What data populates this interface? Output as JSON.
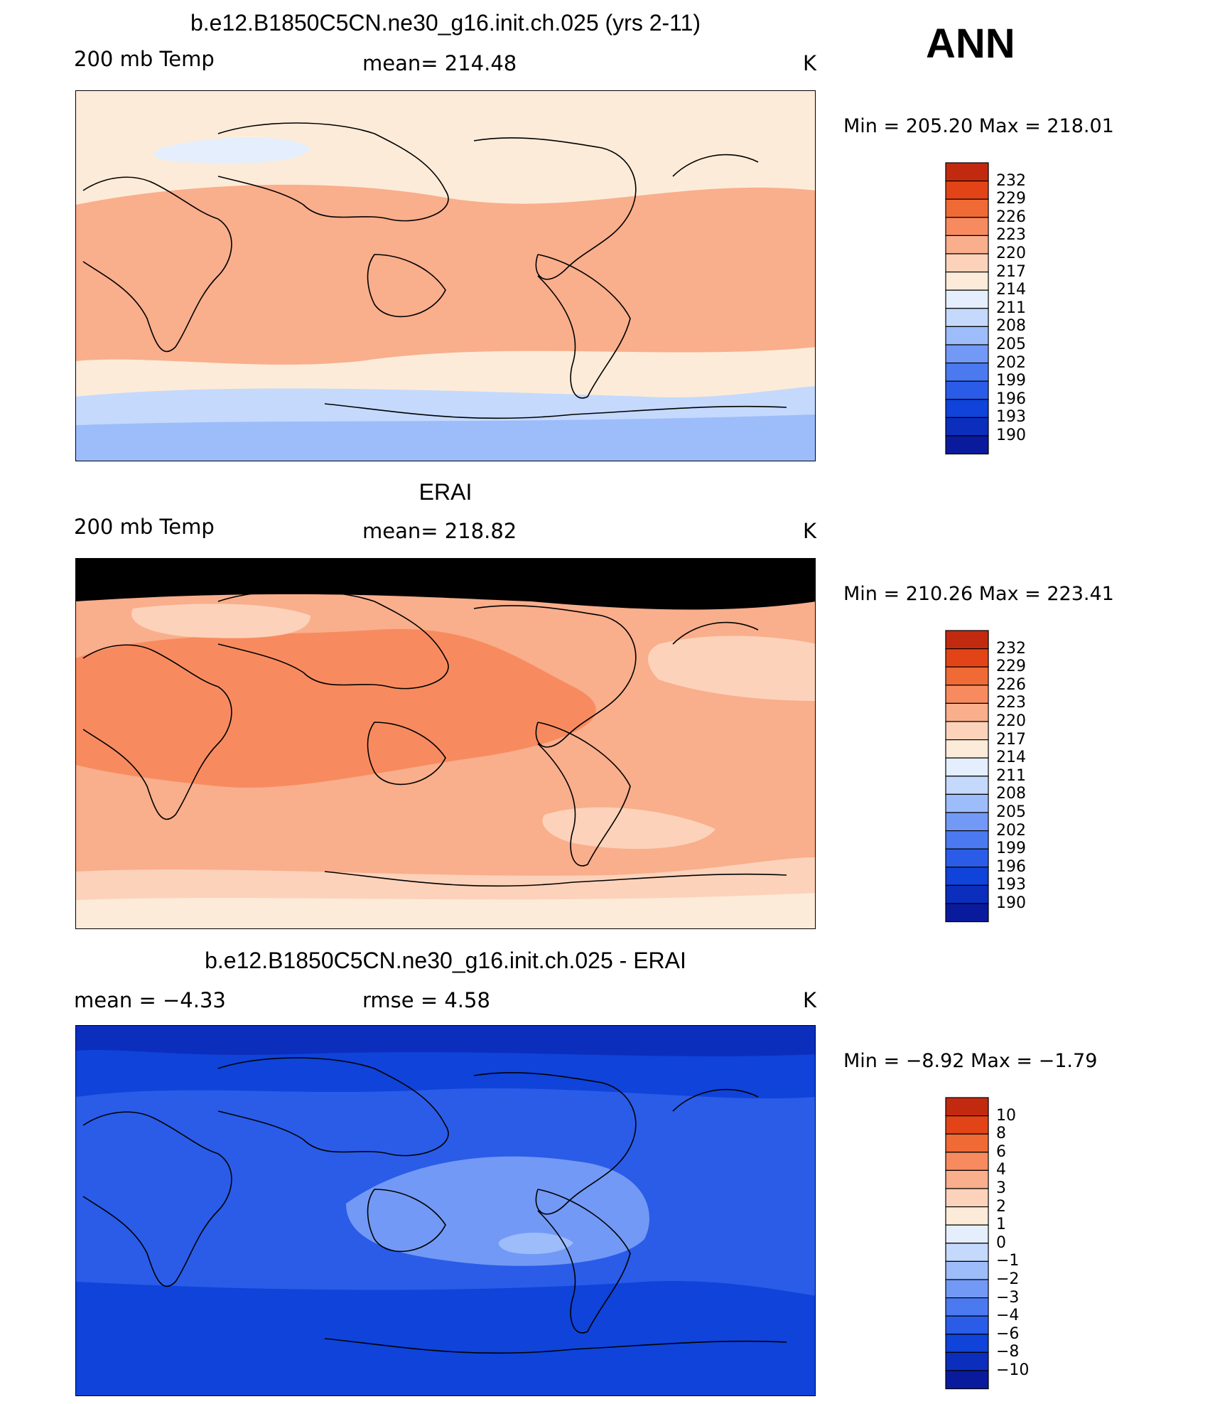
{
  "season": "ANN",
  "palette": [
    "#0a1a9c",
    "#0c2ebd",
    "#0f43d9",
    "#2a5ce8",
    "#4b7af0",
    "#7299f5",
    "#9dbcfa",
    "#c4d9fc",
    "#e4eefc",
    "#fdebd9",
    "#fcd2ba",
    "#f9ae8c",
    "#f78b5f",
    "#f06a36",
    "#e34417",
    "#c22a10",
    "#8e0c0a"
  ],
  "panels": [
    {
      "title": "b.e12.B1850C5CN.ne30_g16.init.ch.025 (yrs 2-11)",
      "left_label": "200 mb Temp",
      "center_label": "mean=  214.48",
      "right_label": "K",
      "min_max": "Min  =  205.20  Max  =  218.01",
      "colorbar": {
        "levels": [
          "232",
          "229",
          "226",
          "223",
          "220",
          "217",
          "214",
          "211",
          "208",
          "205",
          "202",
          "199",
          "196",
          "193",
          "190"
        ]
      },
      "map_fields": {
        "base": "#fdebd9",
        "bands": [
          "#c4d9fc",
          "#9dbcfa"
        ],
        "tropics": "#f9ae8c",
        "highlight": "#e4eefc"
      }
    },
    {
      "title": "ERAI",
      "left_label": "200 mb Temp",
      "center_label": "mean=  218.82",
      "right_label": "K",
      "min_max": "Min  =  210.26  Max  =  223.41",
      "colorbar": {
        "levels": [
          "232",
          "229",
          "226",
          "223",
          "220",
          "217",
          "214",
          "211",
          "208",
          "205",
          "202",
          "199",
          "196",
          "193",
          "190"
        ]
      },
      "map_fields": {
        "base": "#f9ae8c",
        "bands": [
          "#fcd2ba",
          "#fdebd9"
        ],
        "tropics": "#f78b5f",
        "highlight": "#fcd2ba"
      }
    },
    {
      "title": "b.e12.B1850C5CN.ne30_g16.init.ch.025 - ERAI",
      "left_label": "mean  =    −4.33",
      "center_label": "rmse  =     4.58",
      "right_label": "K",
      "min_max": "Min  =    −8.92  Max  =    −1.79",
      "colorbar": {
        "levels": [
          "10",
          "8",
          "6",
          "4",
          "3",
          "2",
          "1",
          "0",
          "−1",
          "−2",
          "−3",
          "−4",
          "−6",
          "−8",
          "−10"
        ]
      },
      "map_fields": {
        "base": "#2a5ce8",
        "bands": [
          "#0f43d9",
          "#0c2ebd"
        ],
        "tropics": "#7299f5",
        "highlight": "#9dbcfa"
      }
    }
  ],
  "chart_data": [
    {
      "type": "heatmap",
      "title": "b.e12.B1850C5CN.ne30_g16.init.ch.025 (yrs 2-11)",
      "variable": "200 mb Temp",
      "units": "K",
      "mean": 214.48,
      "min": 205.2,
      "max": 218.01,
      "contour_levels": [
        190,
        193,
        196,
        199,
        202,
        205,
        208,
        211,
        214,
        217,
        220,
        223,
        226,
        229,
        232
      ]
    },
    {
      "type": "heatmap",
      "title": "ERAI",
      "variable": "200 mb Temp",
      "units": "K",
      "mean": 218.82,
      "min": 210.26,
      "max": 223.41,
      "contour_levels": [
        190,
        193,
        196,
        199,
        202,
        205,
        208,
        211,
        214,
        217,
        220,
        223,
        226,
        229,
        232
      ]
    },
    {
      "type": "heatmap",
      "title": "b.e12.B1850C5CN.ne30_g16.init.ch.025 - ERAI",
      "units": "K",
      "mean": -4.33,
      "rmse": 4.58,
      "min": -8.92,
      "max": -1.79,
      "contour_levels": [
        -10,
        -8,
        -6,
        -4,
        -3,
        -2,
        -1,
        0,
        1,
        2,
        3,
        4,
        6,
        8,
        10
      ]
    }
  ]
}
